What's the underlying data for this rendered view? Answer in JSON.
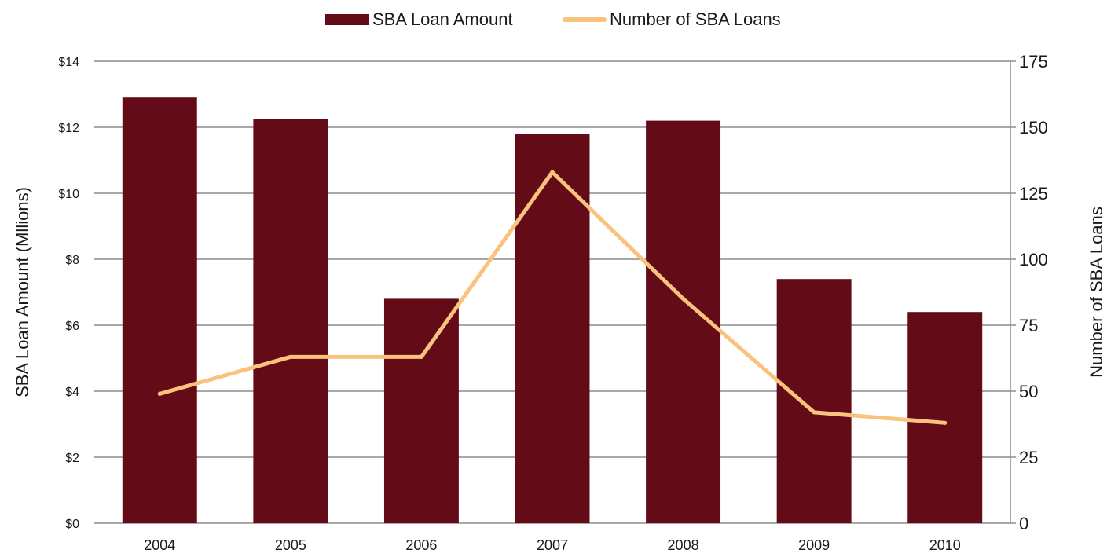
{
  "chart_data": {
    "type": "bar",
    "categories": [
      "2004",
      "2005",
      "2006",
      "2007",
      "2008",
      "2009",
      "2010"
    ],
    "series": [
      {
        "name": "SBA Loan Amount",
        "type": "bar",
        "axis": "left",
        "color": "#630c17",
        "values": [
          12.9,
          12.25,
          6.8,
          11.8,
          12.2,
          7.4,
          6.4
        ]
      },
      {
        "name": "Number of SBA Loans",
        "type": "line",
        "axis": "right",
        "color": "#f9c27d",
        "values": [
          49,
          63,
          63,
          133,
          85,
          42,
          38
        ]
      }
    ],
    "left_axis": {
      "label": "SBA Loan Amount (Mllions)",
      "ylim": [
        0,
        14
      ],
      "ticks": [
        "$0",
        "$2",
        "$4",
        "$6",
        "$8",
        "$10",
        "$12",
        "$14"
      ]
    },
    "right_axis": {
      "label": "Number of SBA Loans",
      "ylim": [
        0,
        175
      ],
      "ticks": [
        "0",
        "25",
        "50",
        "75",
        "100",
        "125",
        "150",
        "175"
      ]
    },
    "grid": true,
    "legend": "top-center"
  }
}
